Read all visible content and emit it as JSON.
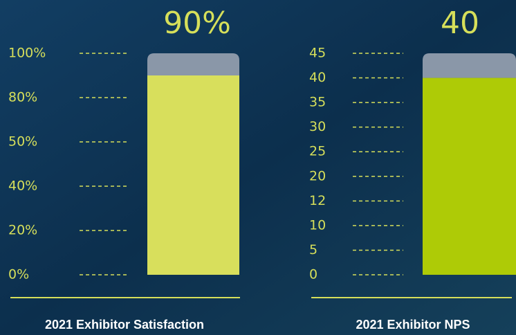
{
  "chart_data": [
    {
      "type": "bar",
      "value_labels": [
        "90%"
      ],
      "values": [
        90
      ],
      "color": "#d8df5c",
      "ylim": [
        0,
        100
      ],
      "yticks": [
        {
          "value": 100,
          "label": "100%"
        },
        {
          "value": 80,
          "label": "80%"
        },
        {
          "value": 50,
          "label": "50%"
        },
        {
          "value": 40,
          "label": "40%"
        },
        {
          "value": 20,
          "label": "20%"
        },
        {
          "value": 0,
          "label": "0%"
        }
      ],
      "xlabel": "2021 Exhibitor Satisfaction"
    },
    {
      "type": "bar",
      "values": [
        40
      ],
      "color": "#aecb06",
      "ylim": [
        0,
        45
      ],
      "yticks": [
        45,
        40,
        35,
        30,
        25,
        20,
        12,
        10,
        5,
        0
      ],
      "xlabel": "2021 Exhibitor NPS"
    }
  ]
}
